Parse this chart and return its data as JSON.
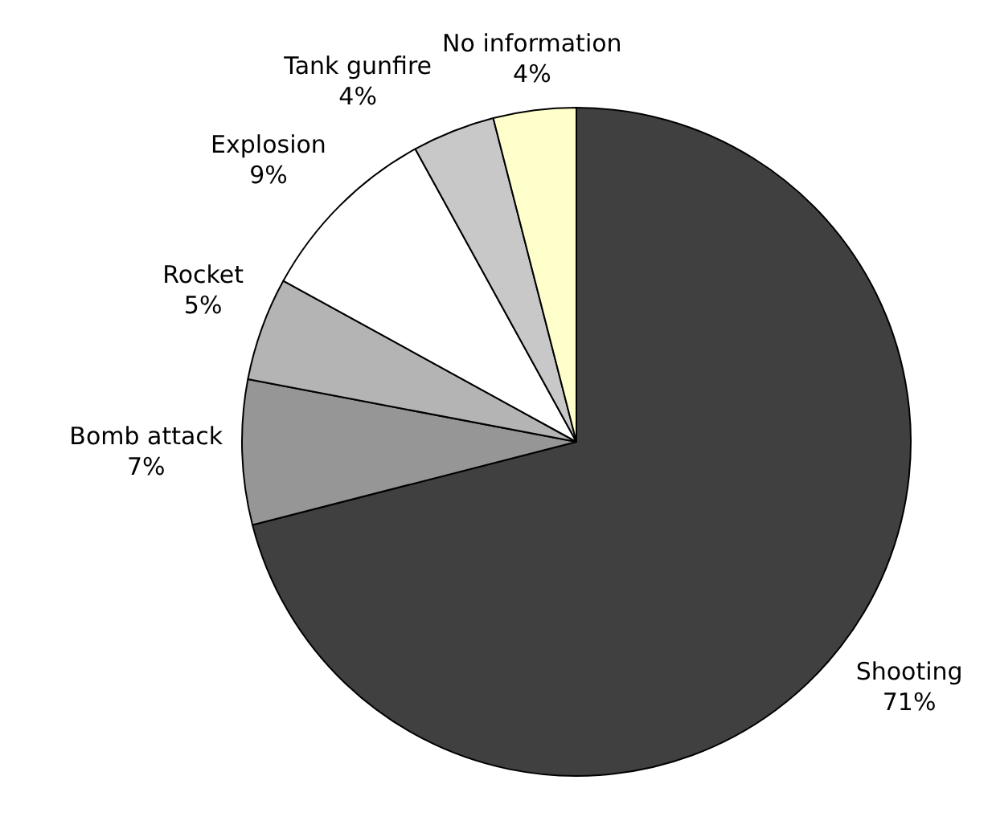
{
  "chart_data": {
    "type": "pie",
    "categories": [
      "Shooting",
      "Bomb attack",
      "Rocket",
      "Explosion",
      "Tank gunfire",
      "No information"
    ],
    "values": [
      71,
      7,
      5,
      9,
      4,
      4
    ],
    "colors": [
      "#404040",
      "#969696",
      "#b4b4b4",
      "#ffffff",
      "#c8c8c8",
      "#ffffcc"
    ],
    "value_labels": [
      "71%",
      "7%",
      "5%",
      "9%",
      "4%",
      "4%"
    ],
    "legend": false
  }
}
